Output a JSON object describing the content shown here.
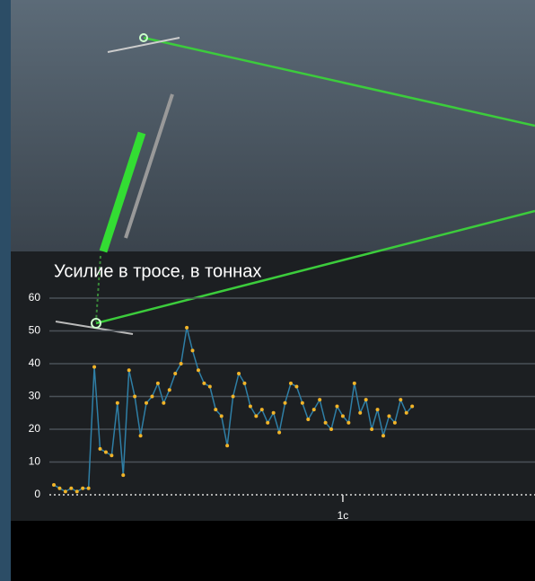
{
  "chart_data": {
    "type": "line",
    "title": "Усилие в тросе, в тоннах",
    "x": [
      0,
      0.02,
      0.04,
      0.06,
      0.08,
      0.1,
      0.12,
      0.14,
      0.16,
      0.18,
      0.2,
      0.22,
      0.24,
      0.26,
      0.28,
      0.3,
      0.32,
      0.34,
      0.36,
      0.38,
      0.4,
      0.42,
      0.44,
      0.46,
      0.48,
      0.5,
      0.52,
      0.54,
      0.56,
      0.58,
      0.6,
      0.62,
      0.64,
      0.66,
      0.68,
      0.7,
      0.72,
      0.74,
      0.76,
      0.78,
      0.8,
      0.82,
      0.84,
      0.86,
      0.88,
      0.9,
      0.92,
      0.94,
      0.96,
      0.98,
      1,
      1.02,
      1.04,
      1.06,
      1.08,
      1.1,
      1.12,
      1.14,
      1.16,
      1.18,
      1.2,
      1.22,
      1.24
    ],
    "values": [
      3,
      2,
      1,
      2,
      1,
      2,
      2,
      39,
      14,
      13,
      12,
      28,
      6,
      38,
      30,
      18,
      28,
      30,
      34,
      28,
      32,
      37,
      40,
      51,
      44,
      38,
      34,
      33,
      26,
      24,
      15,
      30,
      37,
      34,
      27,
      24,
      26,
      22,
      25,
      19,
      28,
      34,
      33,
      28,
      23,
      26,
      29,
      22,
      20,
      27,
      24,
      22,
      34,
      25,
      29,
      20,
      26,
      18,
      24,
      22,
      29,
      25,
      27
    ],
    "color": "#2f7fa6",
    "marker_color": "#f2b428",
    "xlim": [
      0,
      1.665
    ],
    "xticks": [
      {
        "value": 1,
        "label": "1с"
      }
    ],
    "ylim": [
      0,
      60
    ],
    "yticks": [
      0,
      10,
      20,
      30,
      40,
      50,
      60
    ],
    "grid": true
  }
}
